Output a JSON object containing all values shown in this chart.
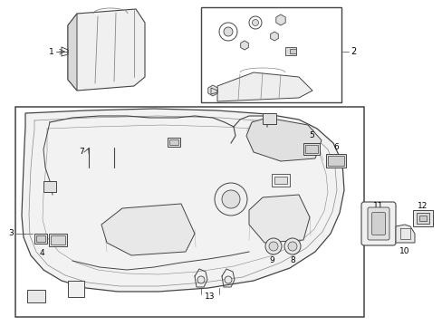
{
  "background_color": "#ffffff",
  "line_color": "#888888",
  "dark_line": "#444444",
  "fig_width": 4.89,
  "fig_height": 3.6,
  "dpi": 100
}
